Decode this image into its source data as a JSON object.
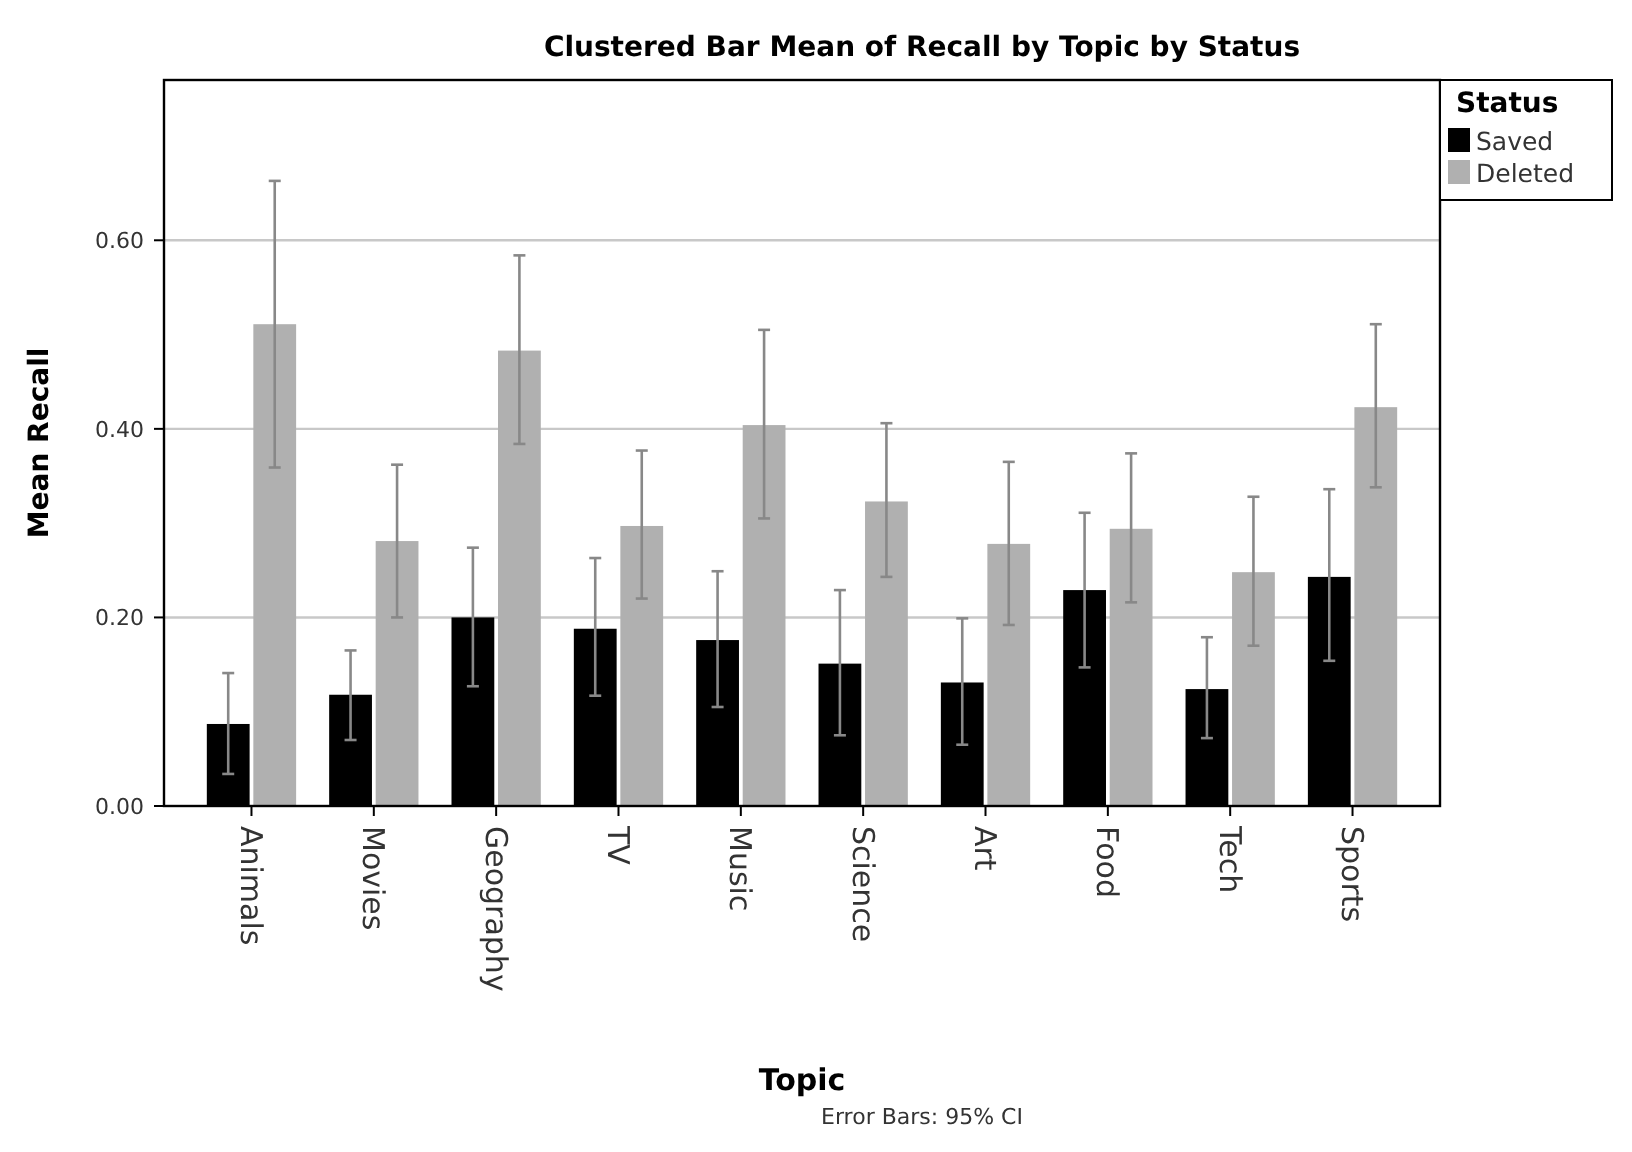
{
  "chart_data": {
    "type": "bar",
    "title": "Clustered Bar Mean of Recall by Topic by Status",
    "xlabel": "Topic",
    "ylabel": "Mean Recall",
    "legend_title": "Status",
    "legend": "right",
    "grid": "y",
    "categories": [
      "Animals",
      "Movies",
      "Geography",
      "TV",
      "Music",
      "Science",
      "Art",
      "Food",
      "Tech",
      "Sports"
    ],
    "ylim": [
      0,
      0.77
    ],
    "yticks": [
      {
        "value": 0,
        "label": "0.00"
      },
      {
        "value": 0.2,
        "label": "0.20"
      },
      {
        "value": 0.4,
        "label": "0.40"
      },
      {
        "value": 0.6,
        "label": "0.60"
      }
    ],
    "series": [
      {
        "name": "Saved",
        "color": "#000000",
        "values": [
          0.087,
          0.118,
          0.2,
          0.188,
          0.176,
          0.151,
          0.131,
          0.229,
          0.124,
          0.243
        ],
        "errors": [
          [
            0.034,
            0.141
          ],
          [
            0.07,
            0.165
          ],
          [
            0.127,
            0.274
          ],
          [
            0.117,
            0.263
          ],
          [
            0.105,
            0.249
          ],
          [
            0.075,
            0.229
          ],
          [
            0.065,
            0.199
          ],
          [
            0.147,
            0.311
          ],
          [
            0.072,
            0.179
          ],
          [
            0.154,
            0.336
          ]
        ]
      },
      {
        "name": "Deleted",
        "color": "#b0b0b0",
        "values": [
          0.511,
          0.281,
          0.483,
          0.297,
          0.404,
          0.323,
          0.278,
          0.294,
          0.248,
          0.423
        ],
        "errors": [
          [
            0.359,
            0.663
          ],
          [
            0.2,
            0.362
          ],
          [
            0.384,
            0.584
          ],
          [
            0.22,
            0.377
          ],
          [
            0.305,
            0.505
          ],
          [
            0.243,
            0.406
          ],
          [
            0.192,
            0.365
          ],
          [
            0.216,
            0.374
          ],
          [
            0.17,
            0.328
          ],
          [
            0.338,
            0.511
          ]
        ]
      }
    ],
    "annotations": [
      "Error Bars: 95% CI"
    ]
  }
}
